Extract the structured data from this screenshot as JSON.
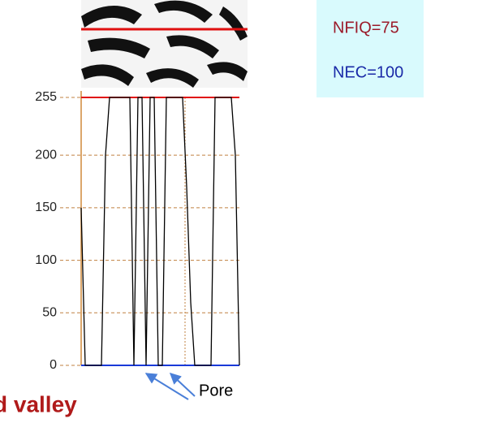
{
  "chart_data": {
    "type": "line",
    "values": [
      150,
      0,
      0,
      0,
      0,
      0,
      200,
      255,
      255,
      255,
      255,
      255,
      255,
      0,
      255,
      255,
      0,
      255,
      255,
      0,
      0,
      255,
      255,
      255,
      255,
      255,
      170,
      60,
      0,
      0,
      0,
      0,
      0,
      255,
      255,
      255,
      255,
      255,
      200,
      0
    ],
    "color": "#000000",
    "ylim": [
      0,
      255
    ],
    "yticks": [
      0,
      50,
      100,
      150,
      200,
      255
    ],
    "grid": true,
    "annotations": [
      "NFIQ=75",
      "NEC=100",
      "Pore",
      "d valley"
    ]
  }
}
